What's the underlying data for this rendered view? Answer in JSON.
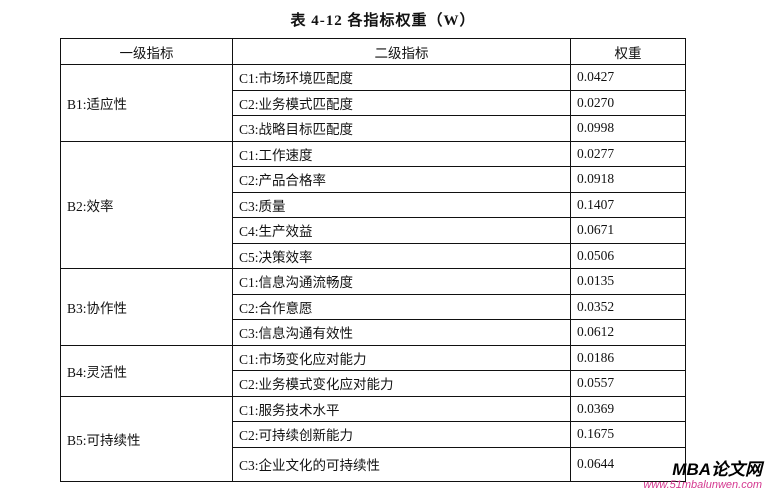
{
  "title": "表 4-12 各指标权重（W）",
  "headers": [
    "一级指标",
    "二级指标",
    "权重"
  ],
  "groups": [
    {
      "name": "B1:适应性",
      "items": [
        [
          "C1:市场环境匹配度",
          "0.0427"
        ],
        [
          "C2:业务模式匹配度",
          "0.0270"
        ],
        [
          "C3:战略目标匹配度",
          "0.0998"
        ]
      ]
    },
    {
      "name": "B2:效率",
      "items": [
        [
          "C1:工作速度",
          "0.0277"
        ],
        [
          "C2:产品合格率",
          "0.0918"
        ],
        [
          "C3:质量",
          "0.1407"
        ],
        [
          "C4:生产效益",
          "0.0671"
        ],
        [
          "C5:决策效率",
          "0.0506"
        ]
      ]
    },
    {
      "name": "B3:协作性",
      "items": [
        [
          "C1:信息沟通流畅度",
          "0.0135"
        ],
        [
          "C2:合作意愿",
          "0.0352"
        ],
        [
          "C3:信息沟通有效性",
          "0.0612"
        ]
      ]
    },
    {
      "name": "B4:灵活性",
      "items": [
        [
          "C1:市场变化应对能力",
          "0.0186"
        ],
        [
          "C2:业务模式变化应对能力",
          "0.0557"
        ]
      ]
    },
    {
      "name": "B5:可持续性",
      "items": [
        [
          "C1:服务技术水平",
          "0.0369"
        ],
        [
          "C2:可持续创新能力",
          "0.1675"
        ],
        [
          "C3:企业文化的可持续性",
          "0.0644"
        ]
      ]
    }
  ],
  "watermark": {
    "brand": "MBA论文网",
    "url": "www.51mbalunwen.com"
  }
}
